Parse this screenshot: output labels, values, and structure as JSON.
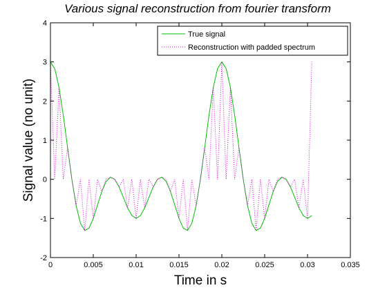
{
  "chart_data": {
    "type": "line",
    "title": "Various signal reconstruction from fourier transform",
    "x_label": "Time in s",
    "y_label": "Signal value (no unit)",
    "x": [
      0,
      0.0005,
      0.001,
      0.0015,
      0.002,
      0.0025,
      0.003,
      0.0035,
      0.004,
      0.0045,
      0.005,
      0.0055,
      0.006,
      0.0065,
      0.007,
      0.0075,
      0.008,
      0.0085,
      0.009,
      0.0095,
      0.01,
      0.0105,
      0.011,
      0.0115,
      0.012,
      0.0125,
      0.013,
      0.0135,
      0.014,
      0.0145,
      0.015,
      0.0155,
      0.016,
      0.0165,
      0.017,
      0.0175,
      0.018,
      0.0185,
      0.019,
      0.0195,
      0.02,
      0.0205,
      0.021,
      0.0215,
      0.022,
      0.0225,
      0.023,
      0.0235,
      0.024,
      0.0245,
      0.025,
      0.0255,
      0.026,
      0.0265,
      0.027,
      0.0275,
      0.028,
      0.0285,
      0.029,
      0.0295,
      0.03,
      0.0305
    ],
    "series": [
      {
        "name": "True signal",
        "color": "#00c000",
        "style": "solid",
        "values": [
          3,
          2.83,
          2.348,
          1.635,
          0.809,
          0,
          -0.672,
          -1.122,
          -1.309,
          -1.249,
          -1,
          -0.653,
          -0.309,
          -0.054,
          0.054,
          0,
          -0.191,
          -0.459,
          -0.73,
          -0.928,
          -1,
          -0.928,
          -0.73,
          -0.459,
          -0.191,
          0,
          0.054,
          -0.054,
          -0.309,
          -0.653,
          -1,
          -1.249,
          -1.309,
          -1.122,
          -0.672,
          0,
          0.809,
          1.635,
          2.348,
          2.83,
          3,
          2.83,
          2.348,
          1.635,
          0.809,
          0,
          -0.672,
          -1.122,
          -1.309,
          -1.249,
          -1,
          -0.653,
          -0.309,
          -0.054,
          0.054,
          0,
          -0.191,
          -0.459,
          -0.73,
          -0.928,
          -1,
          -0.928
        ]
      },
      {
        "name": "Reconstruction with padded spectrum",
        "color": "#e000e0",
        "style": "dotted",
        "values": [
          3,
          0,
          2.348,
          0,
          0.809,
          0,
          -0.672,
          0,
          -1.309,
          0,
          -1,
          0,
          -0.309,
          0,
          0.054,
          0,
          -0.191,
          0,
          -0.73,
          0,
          -1,
          0,
          -0.73,
          0,
          -0.191,
          0,
          0.054,
          0,
          -0.309,
          0,
          -1,
          0,
          -1.309,
          0,
          -0.672,
          0,
          0.809,
          0,
          2.348,
          0,
          3,
          0,
          2.348,
          0,
          0.809,
          0,
          -0.672,
          0,
          -1.309,
          0,
          -1,
          0,
          -0.309,
          0,
          0.054,
          0,
          -0.191,
          0,
          -0.73,
          0,
          -1,
          3
        ]
      }
    ],
    "xlim": [
      0,
      0.035
    ],
    "xticks": [
      0,
      0.005,
      0.01,
      0.015,
      0.02,
      0.025,
      0.03,
      0.035
    ],
    "ylim": [
      -2,
      4
    ],
    "yticks": [
      -2,
      -1,
      0,
      1,
      2,
      3,
      4
    ],
    "grid": false,
    "legend": "upper right"
  }
}
